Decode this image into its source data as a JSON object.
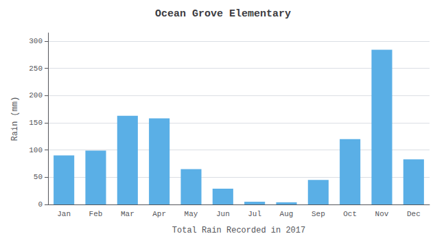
{
  "chart_data": {
    "type": "bar",
    "title": "Ocean Grove Elementary",
    "xlabel": "Total Rain Recorded in 2017",
    "ylabel": "Rain (mm)",
    "categories": [
      "Jan",
      "Feb",
      "Mar",
      "Apr",
      "May",
      "Jun",
      "Jul",
      "Aug",
      "Sep",
      "Oct",
      "Nov",
      "Dec"
    ],
    "values": [
      90,
      99,
      163,
      158,
      65,
      29,
      5,
      4,
      45,
      120,
      284,
      83
    ],
    "color": "#5aafe6",
    "ylim": [
      0,
      315
    ],
    "yticks": [
      0,
      50,
      100,
      150,
      200,
      250,
      300
    ],
    "grid": true
  }
}
